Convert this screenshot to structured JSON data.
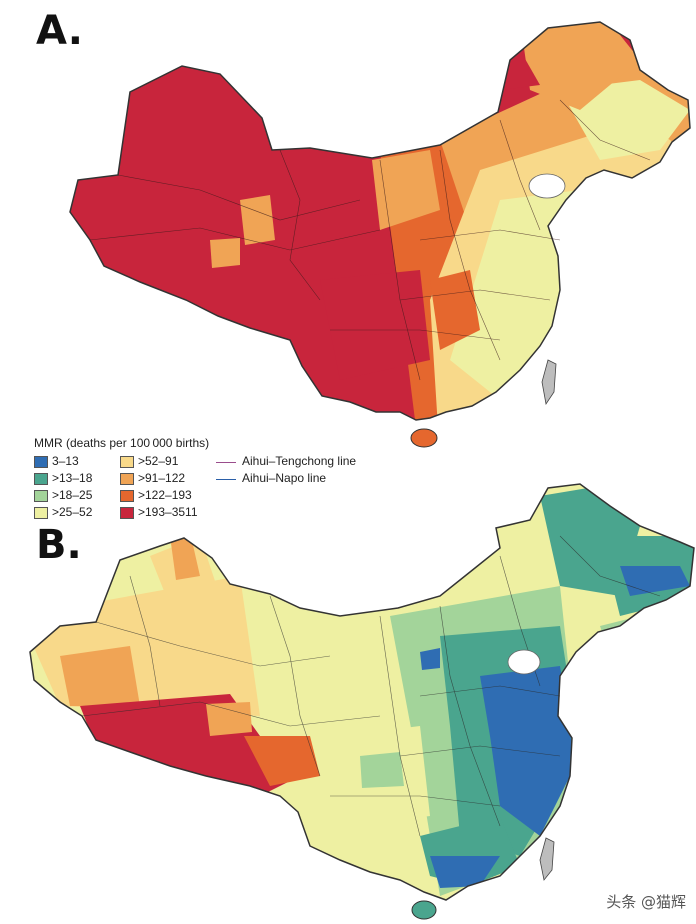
{
  "panels": {
    "a_label": "A.",
    "b_label": "B."
  },
  "legend": {
    "title": "MMR (deaths per 100 000 births)",
    "classes": [
      {
        "label": "3–13",
        "color": "#2f6db3"
      },
      {
        "label": ">13–18",
        "color": "#4aa58e"
      },
      {
        "label": ">18–25",
        "color": "#a3d49a"
      },
      {
        "label": ">25–52",
        "color": "#eef0a2"
      },
      {
        "label": ">52–91",
        "color": "#f8d98a"
      },
      {
        "label": ">91–122",
        "color": "#f0a455"
      },
      {
        "label": ">122–193",
        "color": "#e5672e"
      },
      {
        "label": ">193–3511",
        "color": "#c8253c"
      }
    ],
    "lines": [
      {
        "label": "Aihui–Tengchong line",
        "color": "#9a4d8c"
      },
      {
        "label": "Aihui–Napo line",
        "color": "#2a5fa8"
      }
    ]
  },
  "watermark": "头条 @猫辉"
}
